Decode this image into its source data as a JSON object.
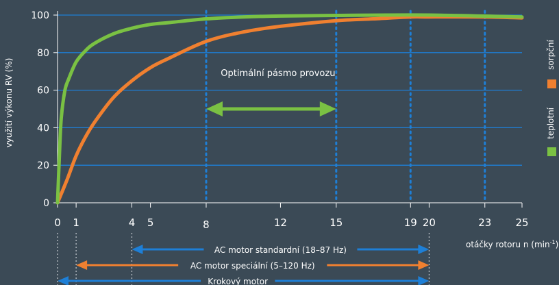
{
  "chart_data": {
    "type": "line",
    "ylabel": "využití výkonu RV (%)",
    "xlabel": "otáčky rotoru n (min",
    "xlabel_sup": "-1",
    "xlim": [
      0,
      25
    ],
    "ylim": [
      0,
      100
    ],
    "x_ticks": [
      0,
      1,
      4,
      5,
      8,
      12,
      15,
      19,
      20,
      23,
      25
    ],
    "y_ticks": [
      0,
      20,
      40,
      60,
      80,
      100
    ],
    "grid": "horizontal",
    "legend_position": "right",
    "series": [
      {
        "name": "sorpční",
        "color": "#f08030",
        "x": [
          0,
          0.5,
          1,
          1.5,
          2,
          3,
          4,
          5,
          6,
          8,
          10,
          12,
          15,
          17,
          19,
          20,
          23,
          25
        ],
        "y": [
          0,
          12,
          25,
          35,
          43,
          56,
          65,
          72,
          77,
          86,
          91,
          94,
          97,
          98,
          99,
          99,
          99,
          98.5
        ]
      },
      {
        "name": "teplotní",
        "color": "#7ac143",
        "x": [
          0,
          0.1,
          0.2,
          0.4,
          0.6,
          1,
          1.5,
          2,
          3,
          4,
          5,
          6,
          8,
          10,
          12,
          15,
          20,
          25
        ],
        "y": [
          0,
          25,
          45,
          60,
          66,
          75,
          81,
          85,
          90,
          93,
          95,
          96,
          98,
          99,
          99.5,
          99.8,
          100,
          99
        ]
      }
    ],
    "vlines": [
      8,
      15,
      19,
      23
    ],
    "annotations": [
      {
        "text": "Optimální pásmo provozu",
        "x_from": 8,
        "x_to": 15,
        "y": 50
      }
    ],
    "ranges": [
      {
        "label": "AC motor standardní (18–87 Hz)",
        "from": 4,
        "to": 20
      },
      {
        "label": "AC motor speciální (5–120 Hz)",
        "from": 1,
        "to": 20
      },
      {
        "label": "Krokový motor",
        "from": 0,
        "to": 20
      }
    ]
  },
  "colors": {
    "background": "#3b4a56",
    "grid": "#1e7fd6",
    "vline": "#1e7fd6",
    "range_arrow": "#1e7fd6",
    "range_arrow_alt": "#f08030",
    "optimal_arrow": "#7ac143",
    "axis": "#ffffff"
  }
}
